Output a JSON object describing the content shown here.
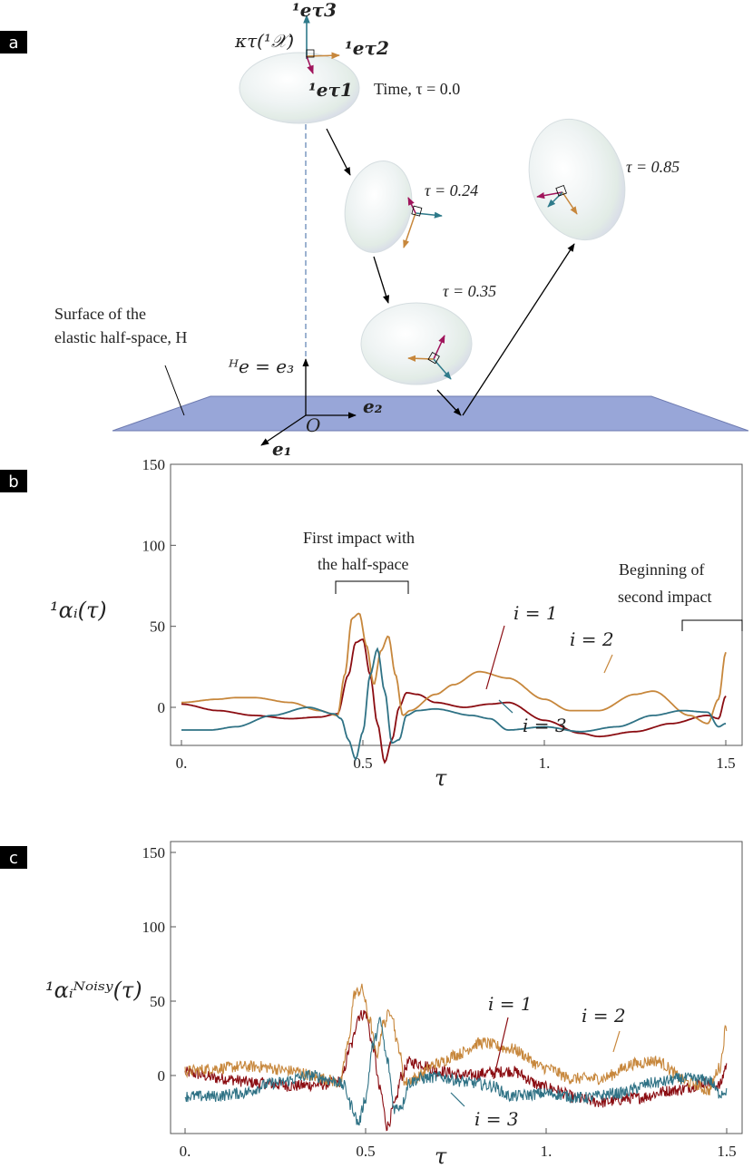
{
  "panels": {
    "a": "a",
    "b": "b",
    "c": "c"
  },
  "schematic": {
    "frame_label": "κτ(¹𝒳)",
    "e_t3": "¹eτ3",
    "e_t2": "¹eτ2",
    "e_t1": "¹eτ1",
    "time0": "Time, τ = 0.0",
    "t024": "τ = 0.24",
    "t035": "τ = 0.35",
    "t085": "τ = 0.85",
    "surface_line1": "Surface of the",
    "surface_line2": "elastic half-space, H",
    "He_e3": "ᴴe = e₃",
    "e2": "e₂",
    "e1": "e₁",
    "origin": "O",
    "colors": {
      "plane": "#98a6d8",
      "ellipsoid": "#eef3f4",
      "red": "#a0155c",
      "orange": "#c7873c",
      "teal": "#2e7a8a"
    }
  },
  "chart_data": [
    {
      "type": "line",
      "panel": "b",
      "ylabel": "¹αᵢ(τ)",
      "xlabel": "τ",
      "xlim": [
        -0.03,
        1.55
      ],
      "ylim": [
        -40,
        150
      ],
      "xticks": [
        {
          "v": 0,
          "t": "0."
        },
        {
          "v": 0.5,
          "t": "0.5"
        },
        {
          "v": 1,
          "t": "1."
        },
        {
          "v": 1.5,
          "t": "1.5"
        }
      ],
      "yticks": [
        {
          "v": 0,
          "t": "0"
        },
        {
          "v": 50,
          "t": "50"
        },
        {
          "v": 100,
          "t": "100"
        },
        {
          "v": 150,
          "t": "150"
        }
      ],
      "annotations": {
        "first_impact_1": "First impact with",
        "first_impact_2": "the half-space",
        "second_1": "Beginning of",
        "second_2": "second impact",
        "i1": "i = 1",
        "i2": "i = 2",
        "i3": "i = 3"
      },
      "series": [
        {
          "name": "i = 1",
          "color": "#8b0d12",
          "x": [
            0,
            0.1,
            0.2,
            0.3,
            0.38,
            0.43,
            0.46,
            0.48,
            0.5,
            0.52,
            0.54,
            0.56,
            0.58,
            0.6,
            0.62,
            0.65,
            0.7,
            0.78,
            0.85,
            0.9,
            1.0,
            1.1,
            1.15,
            1.25,
            1.35,
            1.45,
            1.48,
            1.5
          ],
          "y": [
            2,
            -2,
            -5,
            -7,
            -6,
            -4,
            20,
            40,
            42,
            20,
            -10,
            -34,
            -20,
            0,
            9,
            8,
            3,
            0,
            2,
            3,
            -8,
            -16,
            -18,
            -15,
            -10,
            -5,
            -7,
            7
          ]
        },
        {
          "name": "i = 2",
          "color": "#c7873c",
          "x": [
            0,
            0.1,
            0.15,
            0.2,
            0.3,
            0.38,
            0.43,
            0.45,
            0.47,
            0.49,
            0.51,
            0.53,
            0.55,
            0.57,
            0.59,
            0.61,
            0.63,
            0.7,
            0.75,
            0.82,
            0.9,
            1.0,
            1.07,
            1.15,
            1.25,
            1.3,
            1.4,
            1.45,
            1.48,
            1.5
          ],
          "y": [
            3,
            5,
            6,
            6,
            3,
            -2,
            -5,
            20,
            55,
            58,
            38,
            14,
            35,
            44,
            20,
            -5,
            -2,
            8,
            14,
            22,
            18,
            5,
            -2,
            -2,
            8,
            10,
            -5,
            -10,
            5,
            34
          ]
        },
        {
          "name": "i = 3",
          "color": "#2f7285",
          "x": [
            0,
            0.08,
            0.15,
            0.25,
            0.35,
            0.42,
            0.44,
            0.46,
            0.48,
            0.5,
            0.52,
            0.54,
            0.56,
            0.58,
            0.6,
            0.62,
            0.65,
            0.7,
            0.8,
            0.85,
            0.9,
            1.0,
            1.1,
            1.2,
            1.3,
            1.38,
            1.45,
            1.48,
            1.5
          ],
          "y": [
            -14,
            -14,
            -12,
            -5,
            0,
            -4,
            -7,
            -20,
            -32,
            -15,
            20,
            36,
            10,
            -22,
            -20,
            -5,
            -2,
            -1,
            -5,
            -7,
            -14,
            -12,
            -15,
            -12,
            -5,
            -2,
            -3,
            -12,
            -10
          ]
        }
      ]
    },
    {
      "type": "line",
      "panel": "c",
      "ylabel": "¹αᵢᴺᵒⁱˢʸ(τ)",
      "xlabel": "τ",
      "xlim": [
        -0.03,
        1.55
      ],
      "ylim": [
        -40,
        150
      ],
      "xticks": [
        {
          "v": 0,
          "t": "0."
        },
        {
          "v": 0.5,
          "t": "0.5"
        },
        {
          "v": 1,
          "t": "1."
        },
        {
          "v": 1.5,
          "t": "1.5"
        }
      ],
      "yticks": [
        {
          "v": 0,
          "t": "0"
        },
        {
          "v": 50,
          "t": "50"
        },
        {
          "v": 100,
          "t": "100"
        },
        {
          "v": 150,
          "t": "150"
        }
      ],
      "annotations": {
        "i1": "i = 1",
        "i2": "i = 2",
        "i3": "i = 3"
      },
      "noise_amplitude": 4,
      "series": [
        {
          "name": "i = 1",
          "color": "#8b0d12"
        },
        {
          "name": "i = 2",
          "color": "#c7873c"
        },
        {
          "name": "i = 3",
          "color": "#2f7285"
        }
      ]
    }
  ]
}
